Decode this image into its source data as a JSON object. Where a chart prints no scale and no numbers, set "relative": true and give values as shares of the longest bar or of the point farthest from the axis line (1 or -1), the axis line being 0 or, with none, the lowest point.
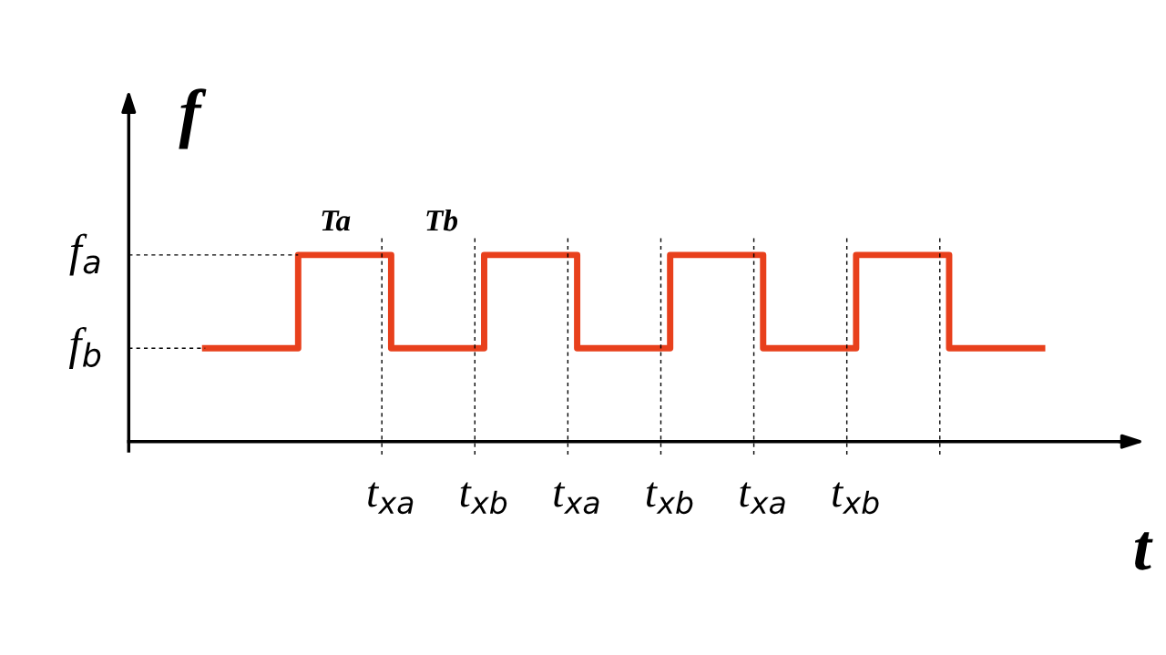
{
  "chart_data": {
    "type": "step",
    "relative": true,
    "xlabel": "t",
    "ylabel": "f",
    "categories": [
      null,
      null,
      "t$_{xa}$",
      "t$_{xb}$",
      "t$_{xa}$",
      "t$_{xb}$",
      "t$_{xa}$",
      "t$_{xb}$",
      null,
      null
    ],
    "series": [
      {
        "color": "#e8401c",
        "values": [
          0.5,
          1,
          0.5,
          1,
          0.5,
          1,
          0.5,
          1,
          0.5,
          0.5
        ]
      }
    ],
    "grid": "x",
    "ref_lines": [
      {
        "axis": "y",
        "value": 1,
        "label": "f$_{a}$",
        "line_style": "dashed"
      },
      {
        "axis": "y",
        "value": 0.5,
        "label": "f$_{b}$",
        "line_style": "dashed"
      }
    ],
    "annotations": [
      "Ta",
      "Tb"
    ]
  }
}
